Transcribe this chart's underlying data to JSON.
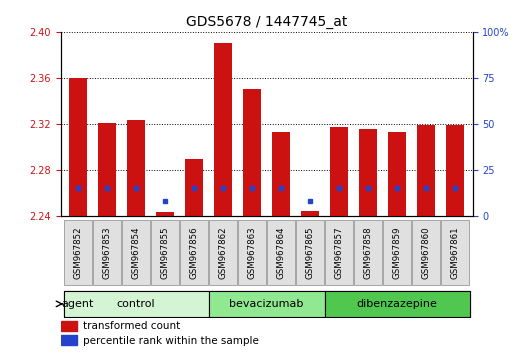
{
  "title": "GDS5678 / 1447745_at",
  "samples": [
    "GSM967852",
    "GSM967853",
    "GSM967854",
    "GSM967855",
    "GSM967856",
    "GSM967862",
    "GSM967863",
    "GSM967864",
    "GSM967865",
    "GSM967857",
    "GSM967858",
    "GSM967859",
    "GSM967860",
    "GSM967861"
  ],
  "transformed_count": [
    2.36,
    2.321,
    2.323,
    2.243,
    2.289,
    2.39,
    2.35,
    2.313,
    2.244,
    2.317,
    2.315,
    2.313,
    2.319,
    2.319
  ],
  "percentile_rank_pct": [
    15,
    15,
    15,
    8,
    15,
    15,
    15,
    15,
    8,
    15,
    15,
    15,
    15,
    15
  ],
  "groups": [
    {
      "label": "control",
      "start": 0,
      "end": 5,
      "color": "#d4f5d4"
    },
    {
      "label": "bevacizumab",
      "start": 5,
      "end": 9,
      "color": "#90e890"
    },
    {
      "label": "dibenzazepine",
      "start": 9,
      "end": 14,
      "color": "#50c850"
    }
  ],
  "y_min": 2.24,
  "y_max": 2.4,
  "y_ticks": [
    2.24,
    2.28,
    2.32,
    2.36,
    2.4
  ],
  "y2_ticks": [
    0,
    25,
    50,
    75,
    100
  ],
  "bar_color": "#cc1111",
  "percentile_color": "#2244cc",
  "background_color": "#ffffff",
  "title_fontsize": 10,
  "tick_fontsize": 7,
  "bar_width": 0.6,
  "tick_label_bg": "#e0e0e0"
}
